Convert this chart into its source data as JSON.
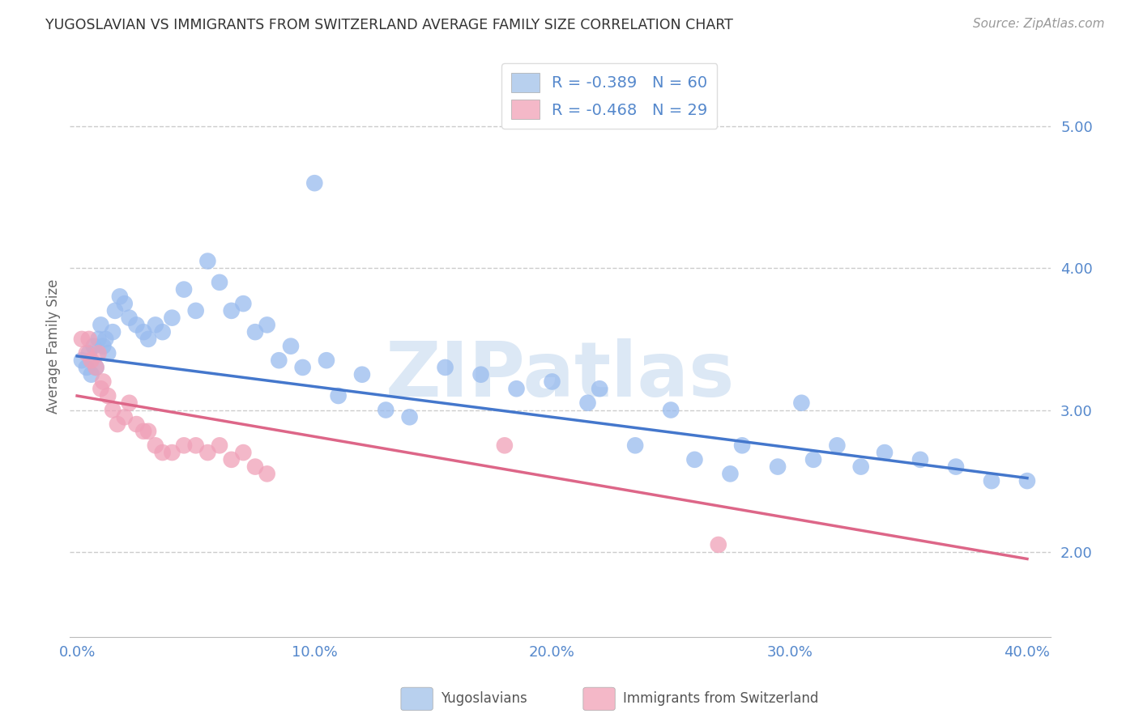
{
  "title": "YUGOSLAVIAN VS IMMIGRANTS FROM SWITZERLAND AVERAGE FAMILY SIZE CORRELATION CHART",
  "source": "Source: ZipAtlas.com",
  "ylabel": "Average Family Size",
  "y_ticks_right": [
    2.0,
    3.0,
    4.0,
    5.0
  ],
  "ylim": [
    1.4,
    5.5
  ],
  "xlim": [
    -0.3,
    41.0
  ],
  "blue_R": -0.389,
  "blue_N": 60,
  "pink_R": -0.468,
  "pink_N": 29,
  "legend_blue_color": "#b8d0ee",
  "legend_pink_color": "#f4b8c8",
  "watermark": "ZIPatlas",
  "watermark_color": "#dce8f5",
  "blue_scatter_x": [
    0.2,
    0.4,
    0.5,
    0.6,
    0.7,
    0.8,
    0.9,
    1.0,
    1.1,
    1.2,
    1.3,
    1.5,
    1.6,
    1.8,
    2.0,
    2.2,
    2.5,
    2.8,
    3.0,
    3.3,
    3.6,
    4.0,
    4.5,
    5.0,
    5.5,
    6.0,
    6.5,
    7.0,
    7.5,
    8.0,
    8.5,
    9.0,
    9.5,
    10.0,
    10.5,
    11.0,
    12.0,
    13.0,
    14.0,
    15.5,
    17.0,
    18.5,
    20.0,
    21.5,
    22.0,
    23.5,
    25.0,
    26.0,
    27.5,
    28.0,
    29.5,
    30.5,
    31.0,
    32.0,
    33.0,
    34.0,
    35.5,
    37.0,
    38.5,
    40.0
  ],
  "blue_scatter_y": [
    3.35,
    3.3,
    3.4,
    3.25,
    3.45,
    3.3,
    3.5,
    3.6,
    3.45,
    3.5,
    3.4,
    3.55,
    3.7,
    3.8,
    3.75,
    3.65,
    3.6,
    3.55,
    3.5,
    3.6,
    3.55,
    3.65,
    3.85,
    3.7,
    4.05,
    3.9,
    3.7,
    3.75,
    3.55,
    3.6,
    3.35,
    3.45,
    3.3,
    4.6,
    3.35,
    3.1,
    3.25,
    3.0,
    2.95,
    3.3,
    3.25,
    3.15,
    3.2,
    3.05,
    3.15,
    2.75,
    3.0,
    2.65,
    2.55,
    2.75,
    2.6,
    3.05,
    2.65,
    2.75,
    2.6,
    2.7,
    2.65,
    2.6,
    2.5,
    2.5
  ],
  "pink_scatter_x": [
    0.2,
    0.4,
    0.5,
    0.6,
    0.8,
    0.9,
    1.0,
    1.1,
    1.3,
    1.5,
    1.7,
    2.0,
    2.2,
    2.5,
    2.8,
    3.0,
    3.3,
    3.6,
    4.0,
    4.5,
    5.0,
    5.5,
    6.0,
    6.5,
    7.0,
    7.5,
    8.0,
    18.0,
    27.0
  ],
  "pink_scatter_y": [
    3.5,
    3.4,
    3.5,
    3.35,
    3.3,
    3.4,
    3.15,
    3.2,
    3.1,
    3.0,
    2.9,
    2.95,
    3.05,
    2.9,
    2.85,
    2.85,
    2.75,
    2.7,
    2.7,
    2.75,
    2.75,
    2.7,
    2.75,
    2.65,
    2.7,
    2.6,
    2.55,
    2.75,
    2.05
  ],
  "blue_line_start_x": 0.0,
  "blue_line_start_y": 3.38,
  "blue_line_end_x": 40.0,
  "blue_line_end_y": 2.52,
  "pink_line_start_x": 0.0,
  "pink_line_start_y": 3.1,
  "pink_line_end_x": 40.0,
  "pink_line_end_y": 1.95,
  "blue_line_color": "#4477cc",
  "pink_line_color": "#dd6688",
  "blue_scatter_color": "#99bbee",
  "pink_scatter_color": "#f0a0b8",
  "grid_color": "#cccccc",
  "bg_color": "#ffffff",
  "title_color": "#333333",
  "right_axis_color": "#5588cc",
  "footer_label_blue": "Yugoslavians",
  "footer_label_pink": "Immigrants from Switzerland"
}
